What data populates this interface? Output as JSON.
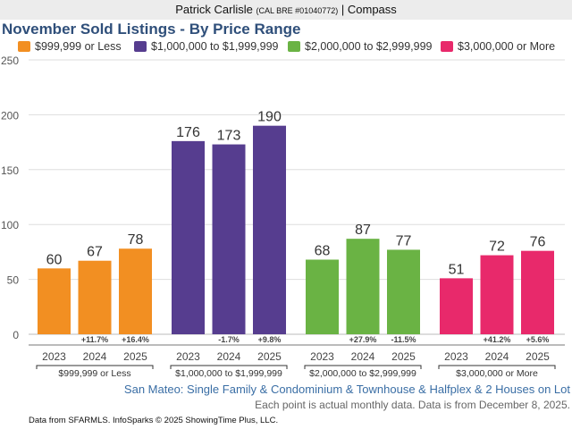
{
  "header": {
    "agent_name": "Patrick Carlisle",
    "license": "(CAL BRE #01040772)",
    "separator": "|",
    "brokerage": "Compass"
  },
  "chart_data": {
    "type": "bar",
    "title": "November Sold Listings - By Price Range",
    "subtitle": "San Mateo: Single Family & Condominium & Townhouse & Halfplex & 2 Houses on Lot",
    "note": "Each point is actual monthly data. Data is from December 8, 2025.",
    "source": "Data from SFARMLS. InfoSparks © 2025 ShowingTime Plus, LLC.",
    "xlabel": "",
    "ylabel": "",
    "ylim": [
      0,
      250
    ],
    "yticks": [
      0,
      50,
      100,
      150,
      200,
      250
    ],
    "grid": true,
    "legend_position": "top",
    "categories": [
      "2023",
      "2024",
      "2025"
    ],
    "series": [
      {
        "name": "$999,999 or Less",
        "color": "#f28f22",
        "values": [
          60,
          67,
          78
        ],
        "changes": [
          "",
          "+11.7%",
          "+16.4%"
        ]
      },
      {
        "name": "$1,000,000 to $1,999,999",
        "color": "#563d8f",
        "values": [
          176,
          173,
          190
        ],
        "changes": [
          "",
          "-1.7%",
          "+9.8%"
        ]
      },
      {
        "name": "$2,000,000 to $2,999,999",
        "color": "#6ab344",
        "values": [
          68,
          87,
          77
        ],
        "changes": [
          "",
          "+27.9%",
          "-11.5%"
        ]
      },
      {
        "name": "$3,000,000 or More",
        "color": "#e8296b",
        "values": [
          51,
          72,
          76
        ],
        "changes": [
          "",
          "+41.2%",
          "+5.6%"
        ]
      }
    ]
  }
}
